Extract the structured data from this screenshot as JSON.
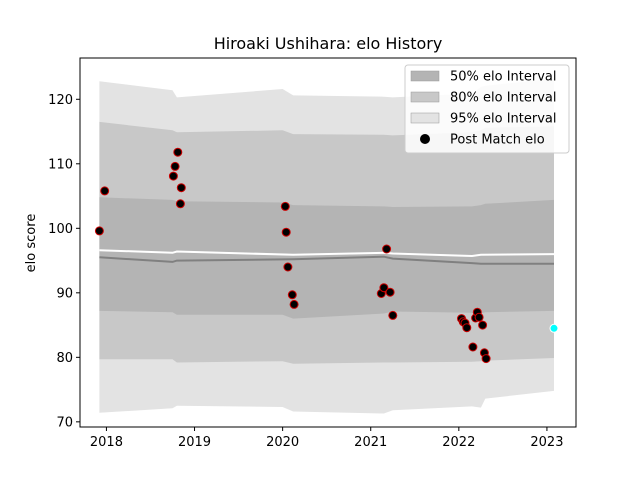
{
  "chart_data": {
    "type": "scatter",
    "title": "Hiroaki Ushihara: elo History",
    "xlabel": "",
    "ylabel": "elo score",
    "xlim": [
      2017.7,
      2023.33
    ],
    "ylim": [
      69.2,
      126.4
    ],
    "xticks": [
      2018,
      2019,
      2020,
      2021,
      2022,
      2023
    ],
    "yticks": [
      70,
      80,
      90,
      100,
      110,
      120
    ],
    "legend_position": "top-right",
    "legend": [
      {
        "label": "50% elo Interval",
        "color": "#b4b4b4"
      },
      {
        "label": "80% elo Interval",
        "color": "#c8c8c8"
      },
      {
        "label": "95% elo Interval",
        "color": "#e3e3e3"
      },
      {
        "label": "Post Match elo",
        "color": "#000000"
      }
    ],
    "interval_x": [
      2017.92,
      2018.75,
      2018.8,
      2020.0,
      2020.12,
      2021.15,
      2021.25,
      2022.15,
      2022.25,
      2022.3,
      2023.08
    ],
    "interval_50_upper": [
      104.8,
      104.4,
      104.2,
      104.0,
      103.6,
      103.4,
      103.3,
      103.4,
      103.6,
      103.8,
      104.4
    ],
    "interval_50_lower": [
      87.2,
      87.0,
      86.6,
      86.6,
      86.0,
      86.8,
      87.1,
      86.9,
      86.8,
      87.0,
      87.2
    ],
    "interval_80_upper": [
      116.5,
      115.2,
      114.9,
      115.2,
      114.6,
      114.5,
      114.4,
      114.9,
      115.2,
      115.6,
      115.8
    ],
    "interval_80_lower": [
      79.7,
      79.7,
      79.2,
      79.4,
      79.0,
      79.2,
      79.2,
      79.3,
      79.4,
      79.5,
      79.9
    ],
    "interval_95_upper": [
      122.8,
      121.4,
      120.3,
      121.6,
      120.6,
      120.4,
      120.3,
      120.9,
      121.9,
      122.1,
      123.2
    ],
    "interval_95_lower": [
      71.4,
      72.1,
      72.5,
      72.3,
      71.6,
      71.3,
      71.8,
      72.4,
      72.2,
      73.6,
      74.8
    ],
    "median_line": {
      "x": [
        2017.92,
        2018.75,
        2018.8,
        2020.12,
        2021.15,
        2021.25,
        2022.15,
        2022.25,
        2023.08
      ],
      "y": [
        95.5,
        94.8,
        95.0,
        95.2,
        95.6,
        95.3,
        94.6,
        94.5,
        94.5
      ],
      "color": "#808080"
    },
    "mean_line": {
      "x": [
        2017.92,
        2018.75,
        2018.8,
        2020.12,
        2021.15,
        2021.25,
        2022.15,
        2022.25,
        2023.08
      ],
      "y": [
        96.6,
        96.2,
        96.4,
        95.9,
        96.2,
        96.1,
        95.7,
        95.9,
        96.0
      ],
      "color": "#ffffff"
    },
    "series": [
      {
        "name": "Post Match elo",
        "color": "#000000",
        "edge_color": "#cc0000",
        "points": [
          {
            "x": 2017.92,
            "y": 99.6
          },
          {
            "x": 2017.98,
            "y": 105.8
          },
          {
            "x": 2018.76,
            "y": 108.1
          },
          {
            "x": 2018.78,
            "y": 109.6
          },
          {
            "x": 2018.81,
            "y": 111.8
          },
          {
            "x": 2018.84,
            "y": 103.8
          },
          {
            "x": 2018.85,
            "y": 106.3
          },
          {
            "x": 2020.03,
            "y": 103.4
          },
          {
            "x": 2020.04,
            "y": 99.4
          },
          {
            "x": 2020.06,
            "y": 94.0
          },
          {
            "x": 2020.11,
            "y": 89.7
          },
          {
            "x": 2020.13,
            "y": 88.2
          },
          {
            "x": 2021.12,
            "y": 89.9
          },
          {
            "x": 2021.15,
            "y": 90.8
          },
          {
            "x": 2021.18,
            "y": 96.8
          },
          {
            "x": 2021.22,
            "y": 90.1
          },
          {
            "x": 2021.25,
            "y": 86.5
          },
          {
            "x": 2022.03,
            "y": 86.0
          },
          {
            "x": 2022.05,
            "y": 85.5
          },
          {
            "x": 2022.07,
            "y": 85.3
          },
          {
            "x": 2022.09,
            "y": 84.6
          },
          {
            "x": 2022.16,
            "y": 81.6
          },
          {
            "x": 2022.19,
            "y": 86.1
          },
          {
            "x": 2022.21,
            "y": 87.0
          },
          {
            "x": 2022.23,
            "y": 86.2
          },
          {
            "x": 2022.27,
            "y": 85.0
          },
          {
            "x": 2022.29,
            "y": 80.7
          },
          {
            "x": 2022.31,
            "y": 79.8
          }
        ]
      },
      {
        "name": "",
        "color": "#00ffff",
        "edge_color": "#ffffff",
        "points": [
          {
            "x": 2023.08,
            "y": 84.5
          }
        ]
      }
    ]
  }
}
